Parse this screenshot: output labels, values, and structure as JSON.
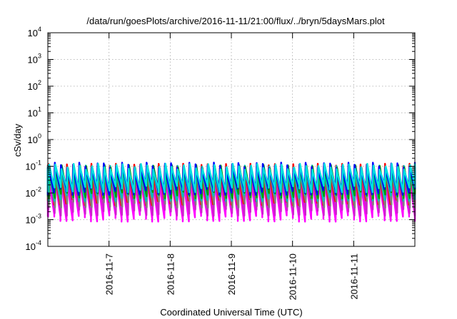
{
  "chart_data": {
    "type": "area",
    "title": "/data/run/goesPlots/archive/2016-11-11/21:00/flux/../bryn/5daysMars.plot",
    "xlabel": "Coordinated Universal Time (UTC)",
    "ylabel": "cSv/day",
    "yscale": "log",
    "ylim": [
      0.0001,
      10000
    ],
    "xlim": [
      "2016-11-06T00:00",
      "2016-11-12T00:00"
    ],
    "grid": true,
    "legend": "none",
    "y_ticks": [
      {
        "value": 0.0001,
        "base": "10",
        "exp": "-4"
      },
      {
        "value": 0.001,
        "base": "10",
        "exp": "-3"
      },
      {
        "value": 0.01,
        "base": "10",
        "exp": "-2"
      },
      {
        "value": 0.1,
        "base": "10",
        "exp": "-1"
      },
      {
        "value": 1,
        "base": "10",
        "exp": "0"
      },
      {
        "value": 10,
        "base": "10",
        "exp": "1"
      },
      {
        "value": 100,
        "base": "10",
        "exp": "2"
      },
      {
        "value": 1000,
        "base": "10",
        "exp": "3"
      },
      {
        "value": 10000,
        "base": "10",
        "exp": "4"
      }
    ],
    "x_ticks": [
      {
        "value": "2016-11-07T00:00",
        "label": "2016-11-7"
      },
      {
        "value": "2016-11-08T00:00",
        "label": "2016-11-8"
      },
      {
        "value": "2016-11-09T00:00",
        "label": "2016-11-9"
      },
      {
        "value": "2016-11-10T00:00",
        "label": "2016-11-10"
      },
      {
        "value": "2016-11-11T00:00",
        "label": "2016-11-11"
      }
    ],
    "cycle_hours": 2.4,
    "series": [
      {
        "color": "#ff00ff",
        "peak": 0.05,
        "trough": 0.0012
      },
      {
        "color": "#cc22cc",
        "peak": 0.06,
        "trough": 0.002
      },
      {
        "color": "#ff0000",
        "peak": 0.1,
        "trough": 0.005
      },
      {
        "color": "#808080",
        "peak": 0.07,
        "trough": 0.004
      },
      {
        "color": "#00bfbf",
        "peak": 0.085,
        "trough": 0.007
      },
      {
        "color": "#00a000",
        "peak": 0.09,
        "trough": 0.009
      },
      {
        "color": "#0000ff",
        "peak": 0.11,
        "trough": 0.012
      },
      {
        "color": "#00e0e0",
        "peak": 0.1,
        "trough": 0.015
      }
    ]
  }
}
